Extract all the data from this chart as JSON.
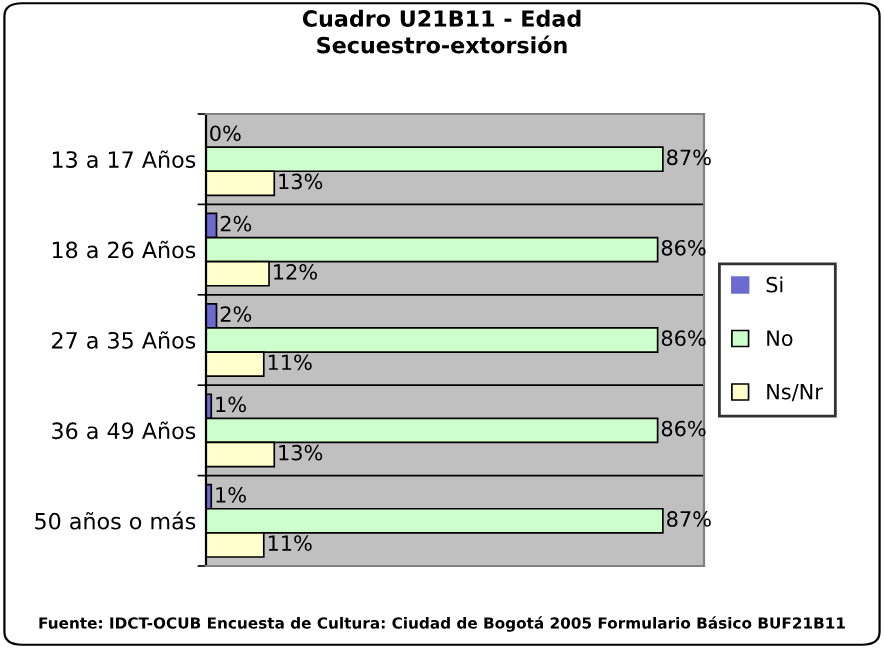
{
  "chart_data": {
    "type": "bar",
    "orientation": "horizontal",
    "title": "Cuadro U21B11 - Edad\nSecuestro-extorsión",
    "categories": [
      "13 a 17 Años",
      "18 a 26 Años",
      "27 a 35 Años",
      "36 a 49 Años",
      "50 años o más"
    ],
    "series": [
      {
        "name": "Si",
        "color": "#6b6bd0",
        "values": [
          0,
          2,
          2,
          1,
          1
        ],
        "value_labels": [
          "0%",
          "2%",
          "2%",
          "1%",
          "1%"
        ]
      },
      {
        "name": "No",
        "color": "#ccffcc",
        "values": [
          87,
          86,
          86,
          86,
          87
        ],
        "value_labels": [
          "87%",
          "86%",
          "86%",
          "86%",
          "87%"
        ]
      },
      {
        "name": "Ns/Nr",
        "color": "#ffffcc",
        "values": [
          13,
          12,
          11,
          13,
          11
        ],
        "value_labels": [
          "13%",
          "12%",
          "11%",
          "13%",
          "11%"
        ]
      }
    ],
    "grid": "y",
    "legend": "right",
    "annotations": [
      "Fuente: IDCT-OCUB Encuesta de Cultura: Ciudad de Bogotá 2005 Formulario Básico BUF21B11"
    ]
  }
}
